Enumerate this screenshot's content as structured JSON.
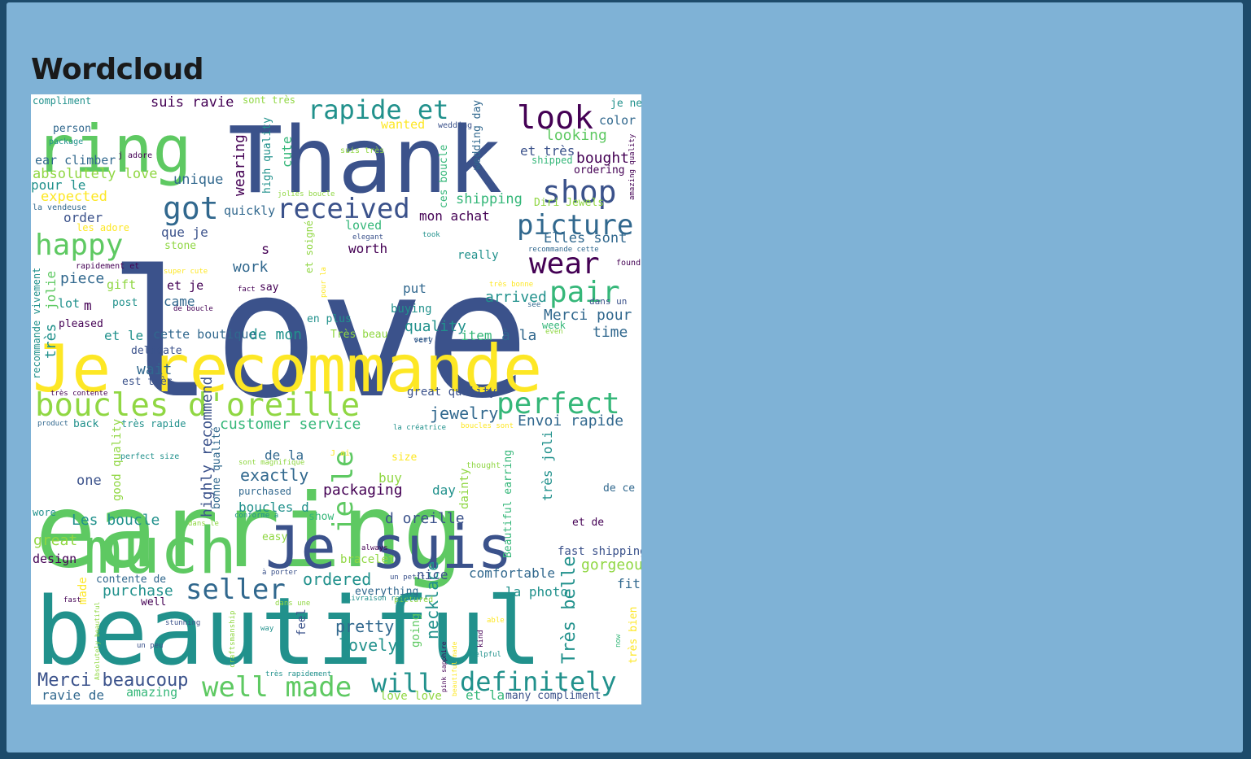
{
  "page": {
    "title": "Wordcloud"
  },
  "wordcloud": {
    "palette": [
      "#3b528b",
      "#21918c",
      "#5ec962",
      "#fde725",
      "#440154",
      "#31688e",
      "#35b779",
      "#90d743"
    ],
    "words": [
      "love",
      "Thank",
      "Je recommande",
      "earring",
      "beautiful",
      "much",
      "Je suis",
      "ring",
      "boucles d'oreille",
      "perfect",
      "shop",
      "look",
      "rapide et",
      "received",
      "got",
      "picture",
      "wear",
      "pair",
      "happy",
      "seller",
      "well made",
      "will",
      "definitely",
      "Merci beaucoup",
      "je le",
      "highly recommend",
      "ordered",
      "pretty",
      "lovely",
      "necklace",
      "Très belle",
      "jewelry",
      "Envoi rapide",
      "customer service",
      "exactly",
      "packaging",
      "Les boucle",
      "boucles d",
      "d oreille",
      "great",
      "gorgeous",
      "purchase",
      "arrived",
      "Merci pour",
      "quality",
      "time",
      "item",
      "à la",
      "et le",
      "cette boutique",
      "de mon",
      "wait",
      "work",
      "came",
      "piece",
      "gift",
      "lot",
      "jolie",
      "très",
      "absolutely love",
      "ear climber",
      "expected",
      "pour le",
      "unique",
      "wearing",
      "cute",
      "quickly",
      "mon achat",
      "shipping",
      "looking",
      "bought",
      "color",
      "suis ravie",
      "compliment",
      "person",
      "order",
      "que je",
      "et je",
      "m",
      "post",
      "pleased",
      "delicate",
      "est très",
      "back",
      "très rapide",
      "one",
      "de la",
      "purchased",
      "buy",
      "size",
      "day",
      "dainty",
      "show",
      "et de",
      "design",
      "wore",
      "made",
      "contente de",
      "well",
      "comfortable",
      "nice",
      "la photo",
      "fit",
      "feel",
      "going",
      "amazing",
      "ravie de",
      "love love",
      "et la",
      "many compliment",
      "fast shipping",
      "easy",
      "bracelet",
      "everything",
      "très joli",
      "Beautiful earring",
      "de ce",
      "put",
      "buying",
      "en plus",
      "worth",
      "loved",
      "stone",
      "say",
      "s",
      "really",
      "Elles sont",
      "Diri Jewels",
      "et très",
      "ordering",
      "wanted",
      "high quality",
      "wedding day",
      "ces boucle",
      "sont très",
      "je ne",
      "great quality",
      "good quality",
      "bonne qualité",
      "recommande vivement",
      "Très beau",
      "very",
      "week",
      "dans un",
      "found",
      "les adore",
      "la vendeuse",
      "package",
      "j adore",
      "suis très",
      "wedding",
      "amazing quality",
      "shipped",
      "jolies boucle",
      "took",
      "elegant",
      "recommande cette",
      "rapidement et",
      "super cute",
      "très bonne",
      "see",
      "even",
      "fact",
      "de boucle",
      "et soigné",
      "pour la",
      "sent",
      "très contente",
      "product",
      "la créatrice",
      "boucles sont",
      "perfect size",
      "J ai",
      "sont magnifique",
      "thought",
      "conforme à",
      "dans le",
      "always",
      "à porter",
      "un petit",
      "pictured",
      "Livraison rapide",
      "dans une",
      "fast",
      "stunning",
      "way",
      "un peu",
      "craftsmanship",
      "très rapidement",
      "Absolutely beautiful",
      "pink sapphire",
      "beautiful made",
      "kind",
      "helpful",
      "now",
      "très bien",
      "able"
    ]
  }
}
